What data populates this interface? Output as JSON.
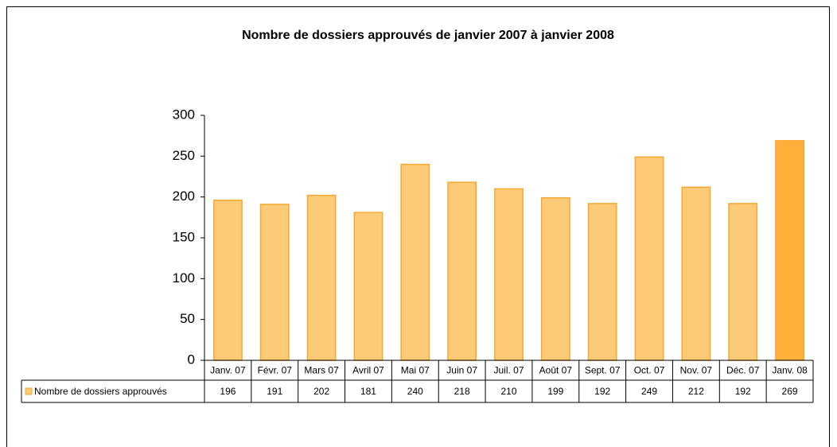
{
  "chart_data": {
    "type": "bar",
    "title": "Nombre de dossiers approuvés de janvier 2007 à janvier 2008",
    "categories": [
      "Janv. 07",
      "Févr. 07",
      "Mars 07",
      "Avril 07",
      "Mai 07",
      "Juin 07",
      "Juil. 07",
      "Août 07",
      "Sept. 07",
      "Oct. 07",
      "Nov. 07",
      "Déc. 07",
      "Janv. 08"
    ],
    "series": [
      {
        "name": "Nombre de dossiers approuvés",
        "color": "#fdca77",
        "colors": [
          "#fdca77",
          "#fdca77",
          "#fdca77",
          "#fdca77",
          "#fdca77",
          "#fdca77",
          "#fdca77",
          "#fdca77",
          "#fdca77",
          "#fdca77",
          "#fdca77",
          "#fdca77",
          "#ffb03b"
        ],
        "values": [
          196,
          191,
          202,
          181,
          240,
          218,
          210,
          199,
          192,
          249,
          212,
          192,
          269
        ]
      }
    ],
    "ylim": [
      0,
      300
    ],
    "yticks": [
      0,
      50,
      100,
      150,
      200,
      250,
      300
    ],
    "data_table": true
  }
}
